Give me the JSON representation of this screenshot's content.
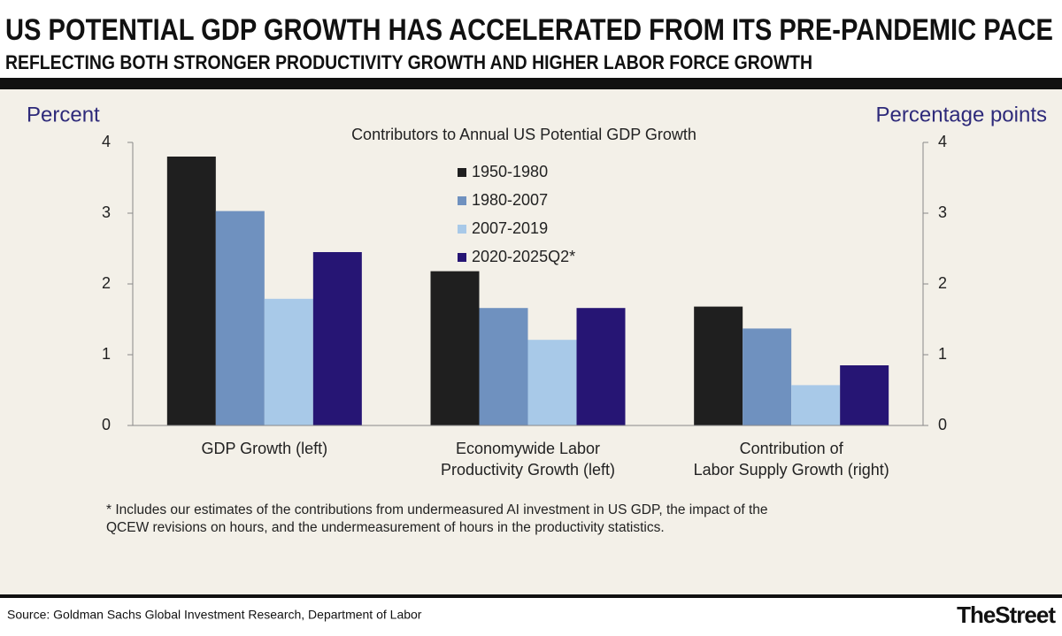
{
  "header": {
    "title": "US POTENTIAL GDP GROWTH HAS ACCELERATED FROM ITS PRE-PANDEMIC PACE",
    "subtitle": "REFLECTING BOTH STRONGER PRODUCTIVITY GROWTH AND HIGHER LABOR FORCE GROWTH"
  },
  "chart_data": {
    "type": "bar",
    "title": "Contributors to Annual US Potential GDP Growth",
    "y_label": "Percent",
    "y2_label": "Percentage points",
    "categories": [
      "GDP Growth (left)",
      "Economywide Labor\nProductivity Growth (left)",
      "Contribution of\nLabor Supply Growth (right)"
    ],
    "series": [
      {
        "name": "1950-1980",
        "color": "#1f1f1f",
        "values": [
          3.8,
          2.18,
          1.68
        ]
      },
      {
        "name": "1980-2007",
        "color": "#6f91bf",
        "values": [
          3.03,
          1.66,
          1.37
        ]
      },
      {
        "name": "2007-2019",
        "color": "#a8c9e8",
        "values": [
          1.79,
          1.21,
          0.57
        ]
      },
      {
        "name": "2020-2025Q2*",
        "color": "#261574",
        "values": [
          2.45,
          1.66,
          0.85
        ]
      }
    ],
    "ylim": [
      0,
      4
    ],
    "yticks": [
      0,
      1,
      2,
      3,
      4
    ],
    "y2lim": [
      0,
      4
    ],
    "y2ticks": [
      0,
      1,
      2,
      3,
      4
    ],
    "footnote": [
      "* Includes our estimates of the contributions from undermeasured AI investment in US GDP, the impact of the",
      "QCEW revisions on hours, and the undermeasurement of hours in the productivity statistics."
    ]
  },
  "footer": {
    "source": "Source: Goldman Sachs Global Investment Research, Department of Labor",
    "logo": "TheStreet"
  }
}
